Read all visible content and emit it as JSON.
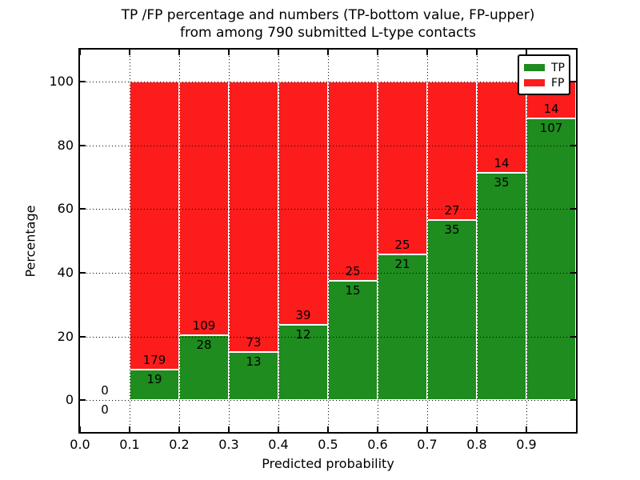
{
  "figure": {
    "title_line1": "TP /FP percentage and numbers (TP-bottom value, FP-upper)",
    "title_line2": "from among 790 submitted L-type contacts"
  },
  "chart_data": {
    "type": "bar",
    "stacked": true,
    "normalized": "each bar totals 100%",
    "title": "TP /FP percentage and numbers (TP-bottom value, FP-upper)\nfrom among 790 submitted L-type contacts",
    "xlabel": "Predicted probability",
    "ylabel": "Percentage",
    "xlim": [
      0.0,
      1.0
    ],
    "ylim": [
      -10,
      110
    ],
    "x_tick_values": [
      0.0,
      0.1,
      0.2,
      0.3,
      0.4,
      0.5,
      0.6,
      0.7,
      0.8,
      0.9
    ],
    "x_tick_labels": [
      "0.0",
      "0.1",
      "0.2",
      "0.3",
      "0.4",
      "0.5",
      "0.6",
      "0.7",
      "0.8",
      "0.9"
    ],
    "y_tick_values": [
      0,
      20,
      40,
      60,
      80,
      100
    ],
    "y_tick_labels": [
      "0",
      "20",
      "40",
      "60",
      "80",
      "100"
    ],
    "x_grid_values": [
      0.1,
      0.2,
      0.3,
      0.4,
      0.5,
      0.6,
      0.7,
      0.8,
      0.9
    ],
    "grid_style": "dotted",
    "grid_over_bars": true,
    "total_contacts": 790,
    "legend": {
      "position": "upper right",
      "entries": [
        {
          "label": "TP",
          "color": "#1e8c1e"
        },
        {
          "label": "FP",
          "color": "#fc1c1c"
        }
      ]
    },
    "bins": [
      {
        "x_start": 0.0,
        "x_end": 0.1,
        "tp": 0,
        "fp": 0,
        "tp_pct": 0,
        "tp_label": "0",
        "fp_label": "0"
      },
      {
        "x_start": 0.1,
        "x_end": 0.2,
        "tp": 19,
        "fp": 179,
        "tp_pct": 9.6,
        "tp_label": "19",
        "fp_label": "179"
      },
      {
        "x_start": 0.2,
        "x_end": 0.3,
        "tp": 28,
        "fp": 109,
        "tp_pct": 20.44,
        "tp_label": "28",
        "fp_label": "109"
      },
      {
        "x_start": 0.3,
        "x_end": 0.4,
        "tp": 13,
        "fp": 73,
        "tp_pct": 15.12,
        "tp_label": "13",
        "fp_label": "73"
      },
      {
        "x_start": 0.4,
        "x_end": 0.5,
        "tp": 12,
        "fp": 39,
        "tp_pct": 23.53,
        "tp_label": "12",
        "fp_label": "39"
      },
      {
        "x_start": 0.5,
        "x_end": 0.6,
        "tp": 15,
        "fp": 25,
        "tp_pct": 37.5,
        "tp_label": "15",
        "fp_label": "25"
      },
      {
        "x_start": 0.6,
        "x_end": 0.7,
        "tp": 21,
        "fp": 25,
        "tp_pct": 45.65,
        "tp_label": "21",
        "fp_label": "25"
      },
      {
        "x_start": 0.7,
        "x_end": 0.8,
        "tp": 35,
        "fp": 27,
        "tp_pct": 56.45,
        "tp_label": "35",
        "fp_label": "27"
      },
      {
        "x_start": 0.8,
        "x_end": 0.9,
        "tp": 35,
        "fp": 14,
        "tp_pct": 71.43,
        "tp_label": "35",
        "fp_label": "14"
      },
      {
        "x_start": 0.9,
        "x_end": 1.0,
        "tp": 107,
        "fp": 14,
        "tp_pct": 88.43,
        "tp_label": "107",
        "fp_label": "14"
      }
    ]
  },
  "colors": {
    "tp": "#1e8c1e",
    "fp": "#fc1c1c",
    "axis": "#000000",
    "grid": "#000000",
    "background": "#ffffff"
  }
}
